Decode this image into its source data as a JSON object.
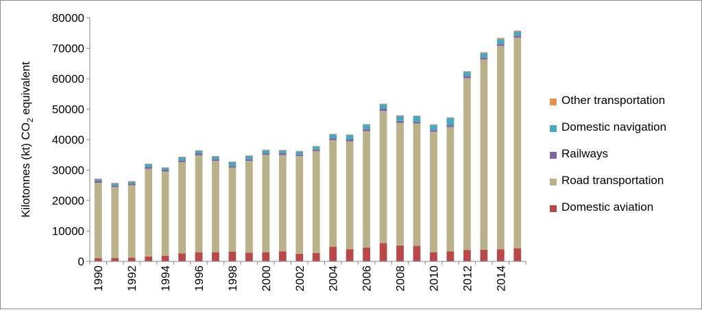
{
  "chart_data": {
    "type": "bar",
    "stacked": true,
    "ylabel": "Kilotonnes  (kt)  CO2 equivalent",
    "ylabel_parts": {
      "prefix": "Kilotonnes  (kt)  CO",
      "subscript": "2",
      "suffix": " equivalent"
    },
    "ylim": [
      0,
      80000
    ],
    "yticks": [
      "0",
      "10000",
      "20000",
      "30000",
      "40000",
      "50000",
      "60000",
      "70000",
      "80000"
    ],
    "grid": false,
    "legend_position": "right",
    "categories": [
      "1990",
      "1991",
      "1992",
      "1993",
      "1994",
      "1995",
      "1996",
      "1997",
      "1998",
      "1999",
      "2000",
      "2001",
      "2002",
      "2003",
      "2004",
      "2005",
      "2006",
      "2007",
      "2008",
      "2009",
      "2010",
      "2011",
      "2012",
      "2013",
      "2014",
      "2015"
    ],
    "xtick_labels": [
      "1990",
      "",
      "1992",
      "",
      "1994",
      "",
      "1996",
      "",
      "1998",
      "",
      "2000",
      "",
      "2002",
      "",
      "2004",
      "",
      "2006",
      "",
      "2008",
      "",
      "2010",
      "",
      "2012",
      "",
      "2014",
      ""
    ],
    "series": [
      {
        "name": "Domestic aviation",
        "color": "#b9484a",
        "values": [
          1000,
          1100,
          1200,
          1600,
          1800,
          2600,
          3000,
          3000,
          3200,
          2800,
          3000,
          3300,
          2500,
          2700,
          4800,
          4000,
          4500,
          6000,
          5200,
          5100,
          3000,
          3300,
          3700,
          3800,
          4000,
          4300
        ]
      },
      {
        "name": "Road transportation",
        "color": "#b8b18a",
        "values": [
          24800,
          23300,
          23800,
          28800,
          27700,
          30000,
          31800,
          30000,
          27600,
          30200,
          32000,
          31600,
          32100,
          33500,
          35000,
          35400,
          38300,
          43400,
          40300,
          40200,
          39600,
          40800,
          56500,
          62500,
          66800,
          69200
        ]
      },
      {
        "name": "Railways",
        "color": "#7f63a2",
        "values": [
          600,
          500,
          500,
          600,
          500,
          600,
          600,
          500,
          500,
          500,
          500,
          600,
          500,
          500,
          600,
          600,
          600,
          700,
          600,
          600,
          500,
          600,
          600,
          600,
          600,
          600
        ]
      },
      {
        "name": "Domestic navigation",
        "color": "#4aa7c2",
        "values": [
          600,
          700,
          700,
          900,
          700,
          1000,
          900,
          900,
          1300,
          1100,
          1000,
          900,
          1000,
          1000,
          1300,
          1500,
          1500,
          1500,
          1700,
          1800,
          1700,
          2400,
          1500,
          1500,
          1600,
          1400
        ]
      },
      {
        "name": "Other transportation",
        "color": "#e8934c",
        "values": [
          200,
          200,
          200,
          200,
          200,
          200,
          200,
          200,
          200,
          200,
          200,
          200,
          200,
          200,
          200,
          200,
          200,
          200,
          200,
          200,
          200,
          200,
          200,
          300,
          400,
          300
        ]
      }
    ]
  }
}
